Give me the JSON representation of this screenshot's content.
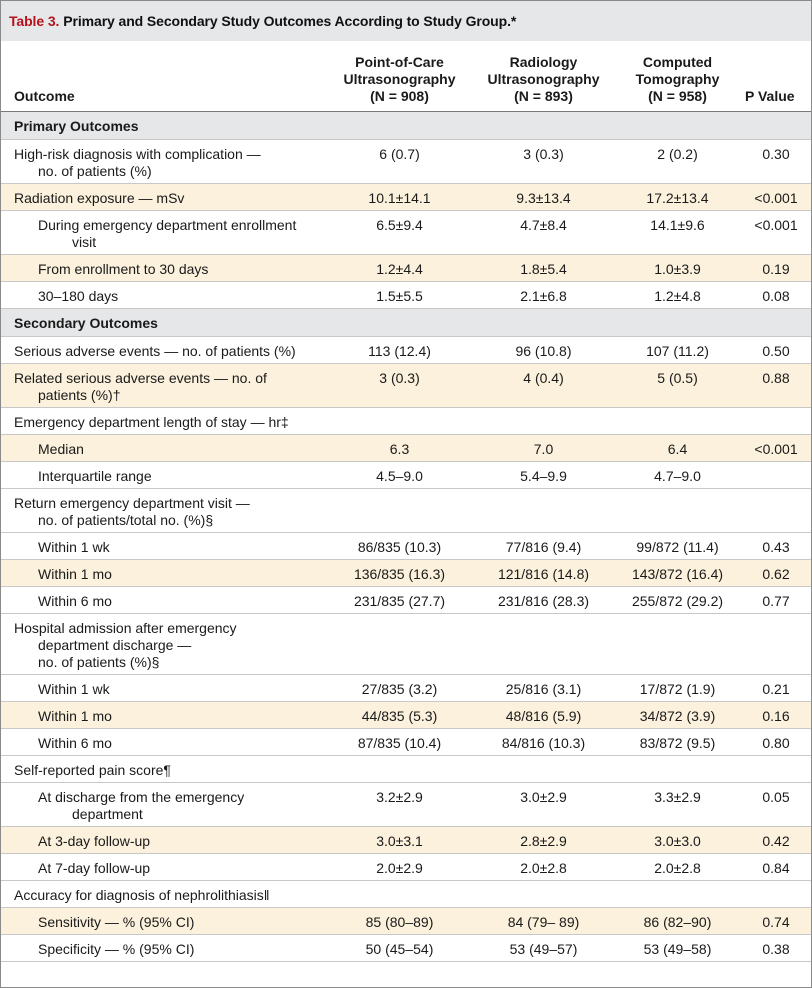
{
  "title": {
    "number": "Table 3.",
    "text": "Primary and Secondary Study Outcomes According to Study Group.*"
  },
  "columns": {
    "outcome": "Outcome",
    "pocus": [
      "Point-of-Care",
      "Ultrasonography",
      "(N = 908)"
    ],
    "radiology": [
      "Radiology",
      "Ultrasonography",
      "(N = 893)"
    ],
    "ct": [
      "Computed",
      "Tomography",
      "(N = 958)"
    ],
    "p": "P Value"
  },
  "rows": [
    {
      "type": "section",
      "label": "Primary Outcomes"
    },
    {
      "type": "data",
      "shade": false,
      "indent": false,
      "lines": [
        "High-risk diagnosis with complication —",
        "no. of patients (%)"
      ],
      "pocus": "6 (0.7)",
      "radiology": "3 (0.3)",
      "ct": "2 (0.2)",
      "p": "0.30"
    },
    {
      "type": "data",
      "shade": true,
      "indent": false,
      "lines": [
        "Radiation exposure — mSv"
      ],
      "pocus": "10.1±14.1",
      "radiology": "9.3±13.4",
      "ct": "17.2±13.4",
      "p": "<0.001"
    },
    {
      "type": "data",
      "shade": false,
      "indent": true,
      "lines": [
        "During emergency department enrollment",
        "visit"
      ],
      "pocus": "6.5±9.4",
      "radiology": "4.7±8.4",
      "ct": "14.1±9.6",
      "p": "<0.001"
    },
    {
      "type": "data",
      "shade": true,
      "indent": true,
      "lines": [
        "From enrollment to 30 days"
      ],
      "pocus": "1.2±4.4",
      "radiology": "1.8±5.4",
      "ct": "1.0±3.9",
      "p": "0.19"
    },
    {
      "type": "data",
      "shade": false,
      "indent": true,
      "lines": [
        "30–180 days"
      ],
      "pocus": "1.5±5.5",
      "radiology": "2.1±6.8",
      "ct": "1.2±4.8",
      "p": "0.08"
    },
    {
      "type": "section",
      "label": "Secondary Outcomes"
    },
    {
      "type": "data",
      "shade": false,
      "indent": false,
      "lines": [
        "Serious adverse events — no. of patients (%)"
      ],
      "pocus": "113 (12.4)",
      "radiology": "96 (10.8)",
      "ct": "107 (11.2)",
      "p": "0.50"
    },
    {
      "type": "data",
      "shade": true,
      "indent": false,
      "lines": [
        "Related serious adverse events — no. of",
        "patients (%)†"
      ],
      "pocus": "3 (0.3)",
      "radiology": "4 (0.4)",
      "ct": "5 (0.5)",
      "p": "0.88"
    },
    {
      "type": "data",
      "shade": false,
      "indent": false,
      "lines": [
        "Emergency department length of stay — hr‡"
      ],
      "pocus": "",
      "radiology": "",
      "ct": "",
      "p": ""
    },
    {
      "type": "data",
      "shade": true,
      "indent": true,
      "lines": [
        "Median"
      ],
      "pocus": "6.3",
      "radiology": "7.0",
      "ct": "6.4",
      "p": "<0.001"
    },
    {
      "type": "data",
      "shade": false,
      "indent": true,
      "lines": [
        "Interquartile range"
      ],
      "pocus": "4.5–9.0",
      "radiology": "5.4–9.9",
      "ct": "4.7–9.0",
      "p": ""
    },
    {
      "type": "data",
      "shade": false,
      "indent": false,
      "lines": [
        "Return emergency department visit —",
        "no. of patients/total no. (%)§"
      ],
      "pocus": "",
      "radiology": "",
      "ct": "",
      "p": ""
    },
    {
      "type": "data",
      "shade": false,
      "indent": true,
      "lines": [
        "Within 1 wk"
      ],
      "pocus": "86/835 (10.3)",
      "radiology": "77/816 (9.4)",
      "ct": "99/872 (11.4)",
      "p": "0.43"
    },
    {
      "type": "data",
      "shade": true,
      "indent": true,
      "lines": [
        "Within 1 mo"
      ],
      "pocus": "136/835 (16.3)",
      "radiology": "121/816 (14.8)",
      "ct": "143/872 (16.4)",
      "p": "0.62"
    },
    {
      "type": "data",
      "shade": false,
      "indent": true,
      "lines": [
        "Within 6 mo"
      ],
      "pocus": "231/835 (27.7)",
      "radiology": "231/816 (28.3)",
      "ct": "255/872 (29.2)",
      "p": "0.77"
    },
    {
      "type": "data",
      "shade": false,
      "indent": false,
      "lines": [
        "Hospital admission after emergency",
        "department discharge —",
        "no. of patients (%)§"
      ],
      "pocus": "",
      "radiology": "",
      "ct": "",
      "p": ""
    },
    {
      "type": "data",
      "shade": false,
      "indent": true,
      "lines": [
        "Within 1 wk"
      ],
      "pocus": "27/835 (3.2)",
      "radiology": "25/816 (3.1)",
      "ct": "17/872 (1.9)",
      "p": "0.21"
    },
    {
      "type": "data",
      "shade": true,
      "indent": true,
      "lines": [
        "Within 1 mo"
      ],
      "pocus": "44/835 (5.3)",
      "radiology": "48/816 (5.9)",
      "ct": "34/872 (3.9)",
      "p": "0.16"
    },
    {
      "type": "data",
      "shade": false,
      "indent": true,
      "lines": [
        "Within 6 mo"
      ],
      "pocus": "87/835 (10.4)",
      "radiology": "84/816 (10.3)",
      "ct": "83/872 (9.5)",
      "p": "0.80"
    },
    {
      "type": "data",
      "shade": false,
      "indent": false,
      "lines": [
        "Self-reported pain score¶"
      ],
      "pocus": "",
      "radiology": "",
      "ct": "",
      "p": ""
    },
    {
      "type": "data",
      "shade": false,
      "indent": true,
      "lines": [
        "At discharge from the emergency",
        "department"
      ],
      "pocus": "3.2±2.9",
      "radiology": "3.0±2.9",
      "ct": "3.3±2.9",
      "p": "0.05"
    },
    {
      "type": "data",
      "shade": true,
      "indent": true,
      "lines": [
        "At 3-day follow-up"
      ],
      "pocus": "3.0±3.1",
      "radiology": "2.8±2.9",
      "ct": "3.0±3.0",
      "p": "0.42"
    },
    {
      "type": "data",
      "shade": false,
      "indent": true,
      "lines": [
        "At 7-day follow-up"
      ],
      "pocus": "2.0±2.9",
      "radiology": "2.0±2.8",
      "ct": "2.0±2.8",
      "p": "0.84"
    },
    {
      "type": "data",
      "shade": false,
      "indent": false,
      "lines": [
        "Accuracy for diagnosis of nephrolithiasis‖"
      ],
      "pocus": "",
      "radiology": "",
      "ct": "",
      "p": ""
    },
    {
      "type": "data",
      "shade": true,
      "indent": true,
      "lines": [
        "Sensitivity — % (95% CI)"
      ],
      "pocus": "85 (80–89)",
      "radiology": "84 (79– 89)",
      "ct": "86 (82–90)",
      "p": "0.74"
    },
    {
      "type": "data",
      "shade": false,
      "indent": true,
      "lines": [
        "Specificity — % (95% CI)"
      ],
      "pocus": "50 (45–54)",
      "radiology": "53 (49–57)",
      "ct": "53 (49–58)",
      "p": "0.38"
    }
  ]
}
